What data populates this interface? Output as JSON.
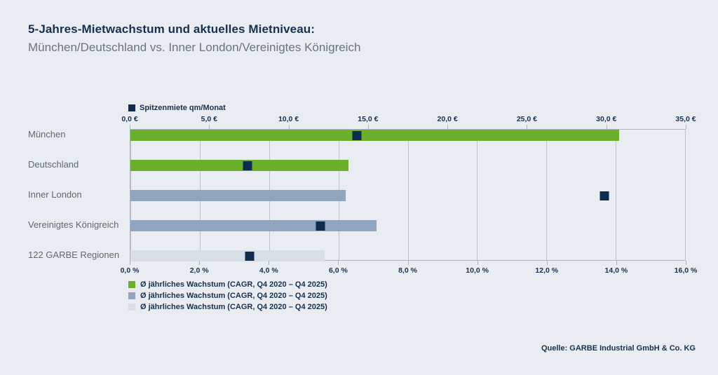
{
  "page": {
    "background": "#e9edf2"
  },
  "header": {
    "title": "5-Jahres-Mietwachstum und aktuelles Mietniveau:",
    "subtitle": "München/Deutschland vs. Inner London/Vereinigtes Königreich"
  },
  "chart_data": {
    "type": "bar",
    "orientation": "horizontal",
    "categories": [
      "München",
      "Deutschland",
      "Inner London",
      "Vereinigtes Königreich",
      "122 GARBE Regionen"
    ],
    "series": [
      {
        "name": "Ø jährliches Wachstum (CAGR, Q4 2020 – Q4 2025)",
        "axis": "bottom",
        "unit": "%",
        "values": [
          14.1,
          6.3,
          6.2,
          7.1,
          5.6
        ],
        "bar_colors": [
          "#6ab02c",
          "#6ab02c",
          "#92a4bd",
          "#92a4bd",
          "#d8dee6"
        ]
      },
      {
        "name": "Spitzenmiete qm/Monat",
        "axis": "top",
        "unit": "€",
        "type": "point",
        "values": [
          14.3,
          7.4,
          29.9,
          12.0,
          7.5
        ],
        "color": "#0f2c4e"
      }
    ],
    "top_axis": {
      "label": "Spitzenmiete qm/Monat",
      "min": 0,
      "max": 35,
      "step": 5,
      "ticks": [
        "0,0 €",
        "5,0 €",
        "10,0 €",
        "15,0 €",
        "20,0 €",
        "25,0 €",
        "30,0 €",
        "35,0 €"
      ]
    },
    "bottom_axis": {
      "min": 0,
      "max": 16,
      "step": 2,
      "ticks": [
        "0,0 %",
        "2,0 %",
        "4,0 %",
        "6,0 %",
        "8,0 %",
        "10,0 %",
        "12,0 %",
        "14,0 %",
        "16,0 %"
      ]
    },
    "grid": "vertical, every 2% of bottom axis",
    "legend_position": "top-left and bottom-left",
    "legend_bottom": [
      {
        "color": "#6ab02c",
        "label": "Ø jährliches Wachstum (CAGR, Q4 2020 – Q4 2025)"
      },
      {
        "color": "#92a4bd",
        "label": "Ø jährliches Wachstum (CAGR, Q4 2020 – Q4 2025)"
      },
      {
        "color": "#d8dee6",
        "label": "Ø jährliches Wachstum (CAGR, Q4 2020 – Q4 2025)"
      }
    ],
    "source": "Quelle: GARBE Industrial GmbH & Co. KG"
  }
}
